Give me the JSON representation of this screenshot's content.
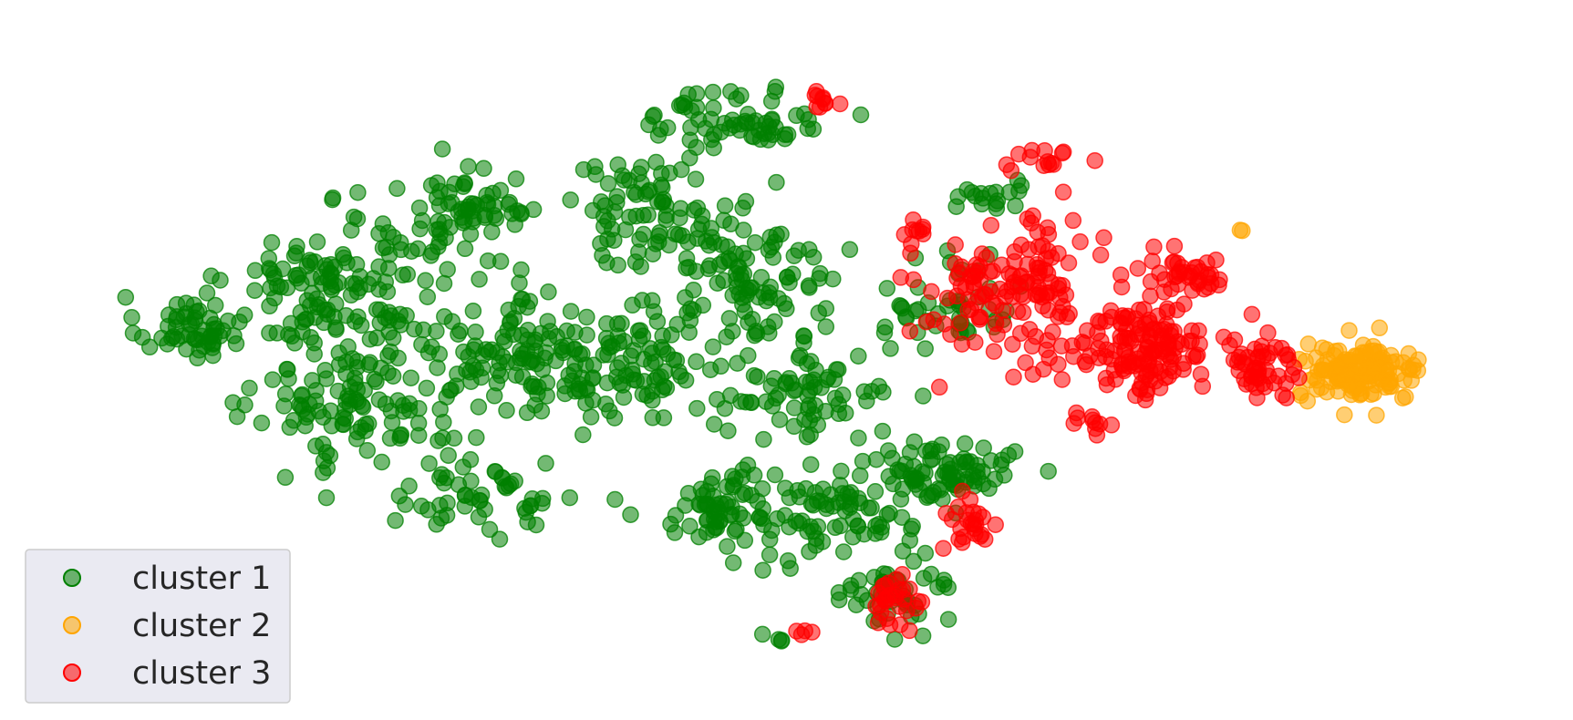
{
  "chart_data": {
    "type": "scatter",
    "title": "",
    "xlabel": "",
    "ylabel": "",
    "axes_visible": false,
    "grid": false,
    "legend_position": "bottom-left",
    "marker": "circle",
    "alpha": 0.55,
    "xlim": [
      0,
      100
    ],
    "ylim": [
      0,
      100
    ],
    "series": [
      {
        "name": "cluster 1",
        "color": "#008000",
        "regions": [
          {
            "center": [
              8,
              56
            ],
            "spread": [
              3.0,
              4.0
            ],
            "count": 55
          },
          {
            "center": [
              18,
              62
            ],
            "spread": [
              6.0,
              9.0
            ],
            "count": 130
          },
          {
            "center": [
              20,
              44
            ],
            "spread": [
              6.0,
              8.0
            ],
            "count": 110
          },
          {
            "center": [
              27,
              74
            ],
            "spread": [
              5.0,
              6.0
            ],
            "count": 70
          },
          {
            "center": [
              31,
              53
            ],
            "spread": [
              6.0,
              9.0
            ],
            "count": 120
          },
          {
            "center": [
              28,
              30
            ],
            "spread": [
              6.0,
              5.0
            ],
            "count": 55
          },
          {
            "center": [
              40,
              74
            ],
            "spread": [
              5.0,
              7.0
            ],
            "count": 85
          },
          {
            "center": [
              39,
              50
            ],
            "spread": [
              4.0,
              7.0
            ],
            "count": 85
          },
          {
            "center": [
              46,
              88
            ],
            "spread": [
              5.0,
              4.0
            ],
            "count": 65
          },
          {
            "center": [
              47,
              63
            ],
            "spread": [
              5.0,
              8.0
            ],
            "count": 95
          },
          {
            "center": [
              51,
              46
            ],
            "spread": [
              5.0,
              6.0
            ],
            "count": 70
          },
          {
            "center": [
              45,
              28
            ],
            "spread": [
              3.0,
              5.0
            ],
            "count": 70
          },
          {
            "center": [
              53,
              27
            ],
            "spread": [
              4.0,
              6.0
            ],
            "count": 70
          },
          {
            "center": [
              57,
              15
            ],
            "spread": [
              3.0,
              5.0
            ],
            "count": 45
          },
          {
            "center": [
              59,
              34
            ],
            "spread": [
              3.5,
              5.0
            ],
            "count": 55
          },
          {
            "center": [
              61,
              60
            ],
            "spread": [
              4.0,
              5.0
            ],
            "count": 45
          },
          {
            "center": [
              63,
              76
            ],
            "spread": [
              3.0,
              3.0
            ],
            "count": 18
          },
          {
            "center": [
              62,
              34
            ],
            "spread": [
              3.5,
              3.0
            ],
            "count": 30
          },
          {
            "center": [
              49,
              8
            ],
            "spread": [
              1.5,
              1.0
            ],
            "count": 4
          }
        ]
      },
      {
        "name": "cluster 2",
        "color": "#ffa500",
        "regions": [
          {
            "center": [
              89,
              49
            ],
            "spread": [
              3.5,
              3.5
            ],
            "count": 140
          },
          {
            "center": [
              80.5,
              71
            ],
            "spread": [
              0.5,
              0.5
            ],
            "count": 2
          }
        ]
      },
      {
        "name": "cluster 3",
        "color": "#ff0000",
        "regions": [
          {
            "center": [
              52,
              91
            ],
            "spread": [
              0.9,
              1.5
            ],
            "count": 10
          },
          {
            "center": [
              67,
              82
            ],
            "spread": [
              2.5,
              1.5
            ],
            "count": 14
          },
          {
            "center": [
              67,
              62
            ],
            "spread": [
              3.0,
              9.0
            ],
            "count": 90
          },
          {
            "center": [
              62,
              61
            ],
            "spread": [
              3.0,
              7.0
            ],
            "count": 50
          },
          {
            "center": [
              74,
              53
            ],
            "spread": [
              4.0,
              6.0
            ],
            "count": 140
          },
          {
            "center": [
              77,
              64
            ],
            "spread": [
              3.0,
              4.0
            ],
            "count": 40
          },
          {
            "center": [
              82,
              50
            ],
            "spread": [
              2.0,
              5.0
            ],
            "count": 50
          },
          {
            "center": [
              62,
              26
            ],
            "spread": [
              1.5,
              4.0
            ],
            "count": 25
          },
          {
            "center": [
              57,
              13
            ],
            "spread": [
              1.5,
              4.0
            ],
            "count": 30
          },
          {
            "center": [
              50,
              9
            ],
            "spread": [
              1.2,
              1.0
            ],
            "count": 4
          },
          {
            "center": [
              71,
              41
            ],
            "spread": [
              2.0,
              2.0
            ],
            "count": 10
          },
          {
            "center": [
              58,
              70
            ],
            "spread": [
              1.5,
              2.5
            ],
            "count": 10
          }
        ]
      }
    ]
  },
  "legend": {
    "items": [
      {
        "label": "cluster 1",
        "color": "#008000"
      },
      {
        "label": "cluster 2",
        "color": "#ffa500"
      },
      {
        "label": "cluster 3",
        "color": "#ff0000"
      }
    ]
  }
}
